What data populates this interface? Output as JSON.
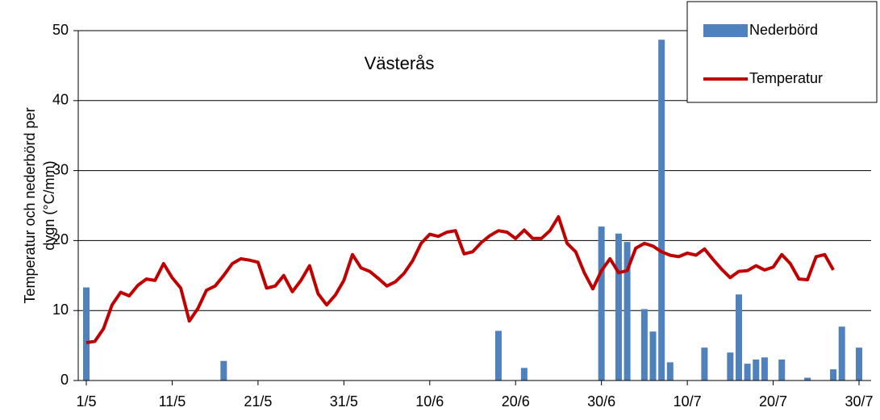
{
  "chart_data": {
    "type": "bar+line",
    "title": "Västerås",
    "ylabel": [
      "Temperatur och nederbörd per",
      "dygn (°C/mm)"
    ],
    "categories": [
      "1/5",
      null,
      null,
      null,
      null,
      null,
      null,
      null,
      null,
      null,
      "11/5",
      null,
      null,
      null,
      null,
      null,
      null,
      null,
      null,
      null,
      "21/5",
      null,
      null,
      null,
      null,
      null,
      null,
      null,
      null,
      null,
      "31/5",
      null,
      null,
      null,
      null,
      null,
      null,
      null,
      null,
      null,
      "10/6",
      null,
      null,
      null,
      null,
      null,
      null,
      null,
      null,
      null,
      "20/6",
      null,
      null,
      null,
      null,
      null,
      null,
      null,
      null,
      null,
      "30/6",
      null,
      null,
      null,
      null,
      null,
      null,
      null,
      null,
      null,
      "10/7",
      null,
      null,
      null,
      null,
      null,
      null,
      null,
      null,
      null,
      "20/7",
      null,
      null,
      null,
      null,
      null,
      null,
      null,
      null,
      null,
      "30/7"
    ],
    "series": [
      {
        "name": "Nederbörd",
        "type": "bar",
        "color": "#4f81bd",
        "values": [
          13.3,
          0,
          0,
          0,
          0,
          0,
          0,
          0,
          0,
          0,
          0,
          0,
          0,
          0,
          0,
          0,
          2.8,
          0,
          0,
          0,
          0,
          0,
          0,
          0,
          0,
          0,
          0,
          0,
          0,
          0,
          0,
          0,
          0,
          0,
          0,
          0,
          0,
          0,
          0,
          0,
          0,
          0,
          0,
          0,
          0,
          0,
          0,
          0,
          7.1,
          0,
          0,
          1.8,
          0,
          0,
          0,
          0,
          0,
          0,
          0,
          0,
          22,
          0,
          21,
          19.8,
          0,
          10.2,
          7,
          48.7,
          2.6,
          0,
          0,
          0,
          4.7,
          0,
          0,
          4,
          12.3,
          2.4,
          3,
          3.3,
          0,
          3,
          0,
          0,
          0.4,
          0,
          0,
          1.6,
          7.7,
          0,
          4.7
        ]
      },
      {
        "name": "Temperatur",
        "type": "line",
        "color": "#c00000",
        "values": [
          5.4,
          5.6,
          7.4,
          10.8,
          12.6,
          12.1,
          13.6,
          14.5,
          14.3,
          16.7,
          14.7,
          13.2,
          8.5,
          10.3,
          12.9,
          13.5,
          15.0,
          16.7,
          17.4,
          17.2,
          16.9,
          13.2,
          13.5,
          15.0,
          12.7,
          14.3,
          16.4,
          12.4,
          10.8,
          12.2,
          14.3,
          18.0,
          16.1,
          15.6,
          14.6,
          13.5,
          14.1,
          15.3,
          17.1,
          19.6,
          20.9,
          20.6,
          21.2,
          21.4,
          18.1,
          18.4,
          19.7,
          20.7,
          21.4,
          21.2,
          20.3,
          21.5,
          20.3,
          20.3,
          21.4,
          23.4,
          19.6,
          18.4,
          15.4,
          13.1,
          15.7,
          17.4,
          15.4,
          15.7,
          18.9,
          19.6,
          19.2,
          18.4,
          17.9,
          17.7,
          18.2,
          17.9,
          18.8,
          17.3,
          15.9,
          14.7,
          15.6,
          15.7,
          16.4,
          15.8,
          16.2,
          18.0,
          16.7,
          14.5,
          14.4,
          17.7,
          18.0,
          15.8,
          null,
          null,
          null
        ]
      }
    ],
    "ylim": [
      0,
      50
    ],
    "yticks": [
      0,
      10,
      20,
      30,
      40,
      50
    ],
    "grid": true,
    "legend": "top-right"
  }
}
